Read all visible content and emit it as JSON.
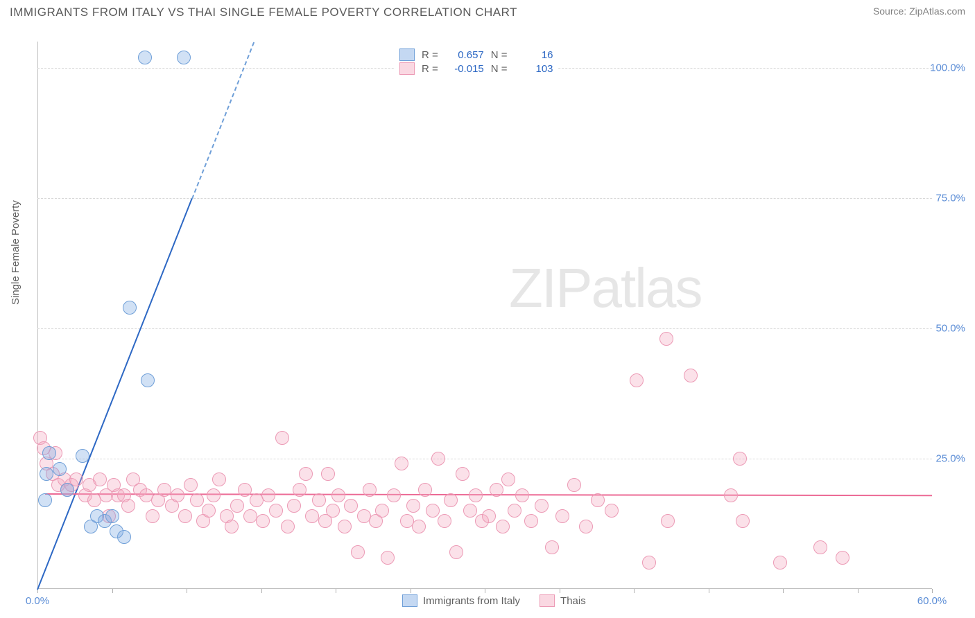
{
  "title": "IMMIGRANTS FROM ITALY VS THAI SINGLE FEMALE POVERTY CORRELATION CHART",
  "source": "Source: ZipAtlas.com",
  "ylabel": "Single Female Poverty",
  "watermark_zip": "ZIP",
  "watermark_atlas": "atlas",
  "chart": {
    "type": "scatter",
    "background_color": "#ffffff",
    "grid_color": "#d8d8d8",
    "xlim": [
      0,
      60
    ],
    "ylim": [
      0,
      105
    ],
    "xtick_positions": [
      0,
      5,
      10,
      15,
      20,
      25,
      30,
      35,
      40,
      45,
      50,
      55,
      60
    ],
    "xtick_labels": {
      "0": "0.0%",
      "60": "60.0%"
    },
    "ytick_positions": [
      25,
      50,
      75,
      100
    ],
    "ytick_labels": {
      "25": "25.0%",
      "50": "50.0%",
      "75": "75.0%",
      "100": "100.0%"
    },
    "marker_radius": 10,
    "series": {
      "blue": {
        "label": "Immigrants from Italy",
        "fill": "rgba(124,169,227,0.35)",
        "stroke": "#6f9fd8",
        "trend_color": "#2d68c4",
        "R": "0.657",
        "N": "16",
        "trend": {
          "x1": 0,
          "y1": 0,
          "x2": 14.5,
          "y2": 105
        },
        "points": [
          {
            "x": 0.5,
            "y": 17
          },
          {
            "x": 0.6,
            "y": 22
          },
          {
            "x": 0.8,
            "y": 26
          },
          {
            "x": 1.5,
            "y": 23
          },
          {
            "x": 2.0,
            "y": 19
          },
          {
            "x": 3.0,
            "y": 25.5
          },
          {
            "x": 3.6,
            "y": 12
          },
          {
            "x": 4.0,
            "y": 14
          },
          {
            "x": 4.5,
            "y": 13
          },
          {
            "x": 5.0,
            "y": 14
          },
          {
            "x": 5.3,
            "y": 11
          },
          {
            "x": 5.8,
            "y": 10
          },
          {
            "x": 6.2,
            "y": 54
          },
          {
            "x": 7.4,
            "y": 40
          },
          {
            "x": 7.2,
            "y": 102
          },
          {
            "x": 9.8,
            "y": 102
          }
        ]
      },
      "pink": {
        "label": "Thais",
        "fill": "rgba(244,168,191,0.35)",
        "stroke": "#ec9ab5",
        "trend_color": "#ec6a95",
        "R": "-0.015",
        "N": "103",
        "trend": {
          "x1": 0.5,
          "y1": 18.3,
          "x2": 60,
          "y2": 18.0
        },
        "points": [
          {
            "x": 0.2,
            "y": 29
          },
          {
            "x": 0.4,
            "y": 27
          },
          {
            "x": 0.6,
            "y": 24
          },
          {
            "x": 1.0,
            "y": 22
          },
          {
            "x": 1.2,
            "y": 26
          },
          {
            "x": 1.4,
            "y": 20
          },
          {
            "x": 1.8,
            "y": 21
          },
          {
            "x": 2.0,
            "y": 19
          },
          {
            "x": 2.3,
            "y": 20
          },
          {
            "x": 2.6,
            "y": 21
          },
          {
            "x": 3.2,
            "y": 18
          },
          {
            "x": 3.5,
            "y": 20
          },
          {
            "x": 3.8,
            "y": 17
          },
          {
            "x": 4.2,
            "y": 21
          },
          {
            "x": 4.6,
            "y": 18
          },
          {
            "x": 4.8,
            "y": 14
          },
          {
            "x": 5.1,
            "y": 20
          },
          {
            "x": 5.4,
            "y": 18
          },
          {
            "x": 5.8,
            "y": 18
          },
          {
            "x": 6.1,
            "y": 16
          },
          {
            "x": 6.4,
            "y": 21
          },
          {
            "x": 6.9,
            "y": 19
          },
          {
            "x": 7.3,
            "y": 18
          },
          {
            "x": 7.7,
            "y": 14
          },
          {
            "x": 8.1,
            "y": 17
          },
          {
            "x": 8.5,
            "y": 19
          },
          {
            "x": 9.0,
            "y": 16
          },
          {
            "x": 9.4,
            "y": 18
          },
          {
            "x": 9.9,
            "y": 14
          },
          {
            "x": 10.3,
            "y": 20
          },
          {
            "x": 10.7,
            "y": 17
          },
          {
            "x": 11.1,
            "y": 13
          },
          {
            "x": 11.5,
            "y": 15
          },
          {
            "x": 11.8,
            "y": 18
          },
          {
            "x": 12.2,
            "y": 21
          },
          {
            "x": 12.7,
            "y": 14
          },
          {
            "x": 13.0,
            "y": 12
          },
          {
            "x": 13.4,
            "y": 16
          },
          {
            "x": 13.9,
            "y": 19
          },
          {
            "x": 14.3,
            "y": 14
          },
          {
            "x": 14.7,
            "y": 17
          },
          {
            "x": 15.1,
            "y": 13
          },
          {
            "x": 15.5,
            "y": 18
          },
          {
            "x": 16.0,
            "y": 15
          },
          {
            "x": 16.4,
            "y": 29
          },
          {
            "x": 16.8,
            "y": 12
          },
          {
            "x": 17.2,
            "y": 16
          },
          {
            "x": 17.6,
            "y": 19
          },
          {
            "x": 18.0,
            "y": 22
          },
          {
            "x": 18.4,
            "y": 14
          },
          {
            "x": 18.9,
            "y": 17
          },
          {
            "x": 19.3,
            "y": 13
          },
          {
            "x": 19.5,
            "y": 22
          },
          {
            "x": 19.8,
            "y": 15
          },
          {
            "x": 20.2,
            "y": 18
          },
          {
            "x": 20.6,
            "y": 12
          },
          {
            "x": 21.0,
            "y": 16
          },
          {
            "x": 21.5,
            "y": 7
          },
          {
            "x": 21.9,
            "y": 14
          },
          {
            "x": 22.3,
            "y": 19
          },
          {
            "x": 22.7,
            "y": 13
          },
          {
            "x": 23.1,
            "y": 15
          },
          {
            "x": 23.5,
            "y": 6
          },
          {
            "x": 23.9,
            "y": 18
          },
          {
            "x": 24.4,
            "y": 24
          },
          {
            "x": 24.8,
            "y": 13
          },
          {
            "x": 25.2,
            "y": 16
          },
          {
            "x": 25.6,
            "y": 12
          },
          {
            "x": 26.0,
            "y": 19
          },
          {
            "x": 26.5,
            "y": 15
          },
          {
            "x": 26.9,
            "y": 25
          },
          {
            "x": 27.3,
            "y": 13
          },
          {
            "x": 27.7,
            "y": 17
          },
          {
            "x": 28.1,
            "y": 7
          },
          {
            "x": 28.5,
            "y": 22
          },
          {
            "x": 29.0,
            "y": 15
          },
          {
            "x": 29.4,
            "y": 18
          },
          {
            "x": 29.8,
            "y": 13
          },
          {
            "x": 30.3,
            "y": 14
          },
          {
            "x": 30.8,
            "y": 19
          },
          {
            "x": 31.2,
            "y": 12
          },
          {
            "x": 31.6,
            "y": 21
          },
          {
            "x": 32.0,
            "y": 15
          },
          {
            "x": 32.5,
            "y": 18
          },
          {
            "x": 33.1,
            "y": 13
          },
          {
            "x": 33.8,
            "y": 16
          },
          {
            "x": 34.5,
            "y": 8
          },
          {
            "x": 35.2,
            "y": 14
          },
          {
            "x": 36.0,
            "y": 20
          },
          {
            "x": 36.8,
            "y": 12
          },
          {
            "x": 37.6,
            "y": 17
          },
          {
            "x": 38.5,
            "y": 15
          },
          {
            "x": 40.2,
            "y": 40
          },
          {
            "x": 41.0,
            "y": 5
          },
          {
            "x": 42.2,
            "y": 48
          },
          {
            "x": 42.3,
            "y": 13
          },
          {
            "x": 43.8,
            "y": 41
          },
          {
            "x": 46.5,
            "y": 18
          },
          {
            "x": 47.1,
            "y": 25
          },
          {
            "x": 47.3,
            "y": 13
          },
          {
            "x": 49.8,
            "y": 5
          },
          {
            "x": 52.5,
            "y": 8
          },
          {
            "x": 54.0,
            "y": 6
          }
        ]
      }
    }
  },
  "legend_top": {
    "R_label": "R =",
    "N_label": "N ="
  },
  "legend_bottom": [
    {
      "swatch": "blue",
      "label": "Immigrants from Italy"
    },
    {
      "swatch": "pink",
      "label": "Thais"
    }
  ]
}
